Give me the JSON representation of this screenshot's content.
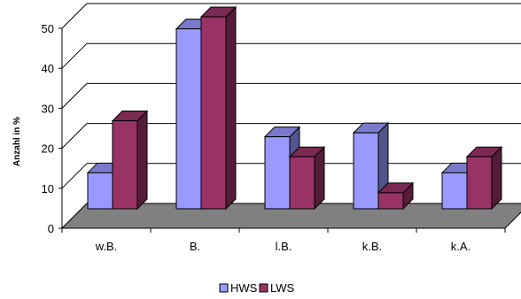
{
  "chart_data": {
    "type": "bar",
    "categories": [
      "w.B.",
      "B.",
      "l.B.",
      "k.B.",
      "k.A."
    ],
    "series": [
      {
        "name": "HWS",
        "values": [
          9,
          45,
          18,
          19,
          9
        ],
        "color": "#9999ff"
      },
      {
        "name": "LWS",
        "values": [
          22,
          48,
          13,
          4,
          13
        ],
        "color": "#993366"
      }
    ],
    "ylabel": "Anzahl in %",
    "ylim": [
      0,
      50
    ],
    "yticks": [
      0,
      10,
      20,
      30,
      40,
      50
    ],
    "grid": true,
    "legend": "bottom",
    "style": "3d-clustered"
  }
}
